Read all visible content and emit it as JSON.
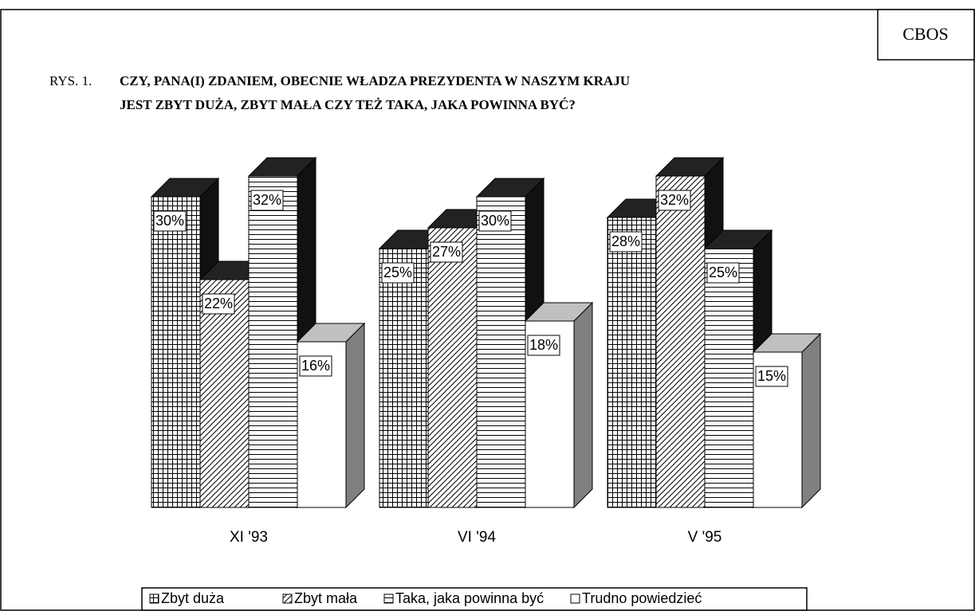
{
  "source": "CBOS",
  "chart_data": {
    "type": "bar3d",
    "figure_label": "RYS. 1.",
    "title": [
      "CZY, PANA(I) ZDANIEM, OBECNIE WŁADZA PREZYDENTA W NASZYM KRAJU",
      "JEST ZBYT DUŻA, ZBYT MAŁA CZY TEŻ TAKA, JAKA POWINNA BYĆ?"
    ],
    "categories": [
      "XI '93",
      "VI '94",
      "V '95"
    ],
    "series": [
      {
        "name": "Zbyt duża",
        "color": "#000000",
        "pattern": "grid",
        "values": [
          30,
          25,
          28
        ],
        "value_labels": [
          "30%",
          "25%",
          "28%"
        ]
      },
      {
        "name": "Zbyt mała",
        "color": "#000000",
        "pattern": "diagonal",
        "values": [
          22,
          27,
          32
        ],
        "value_labels": [
          "22%",
          "27%",
          "32%"
        ]
      },
      {
        "name": "Taka, jaka powinna być",
        "color": "#000000",
        "pattern": "horizontal",
        "values": [
          32,
          30,
          25
        ],
        "value_labels": [
          "32%",
          "30%",
          "25%"
        ]
      },
      {
        "name": "Trudno powiedzieć",
        "color": "#000000",
        "pattern": "none",
        "values": [
          16,
          18,
          15
        ],
        "value_labels": [
          "16%",
          "18%",
          "15%"
        ]
      }
    ],
    "legend": "bottom"
  }
}
